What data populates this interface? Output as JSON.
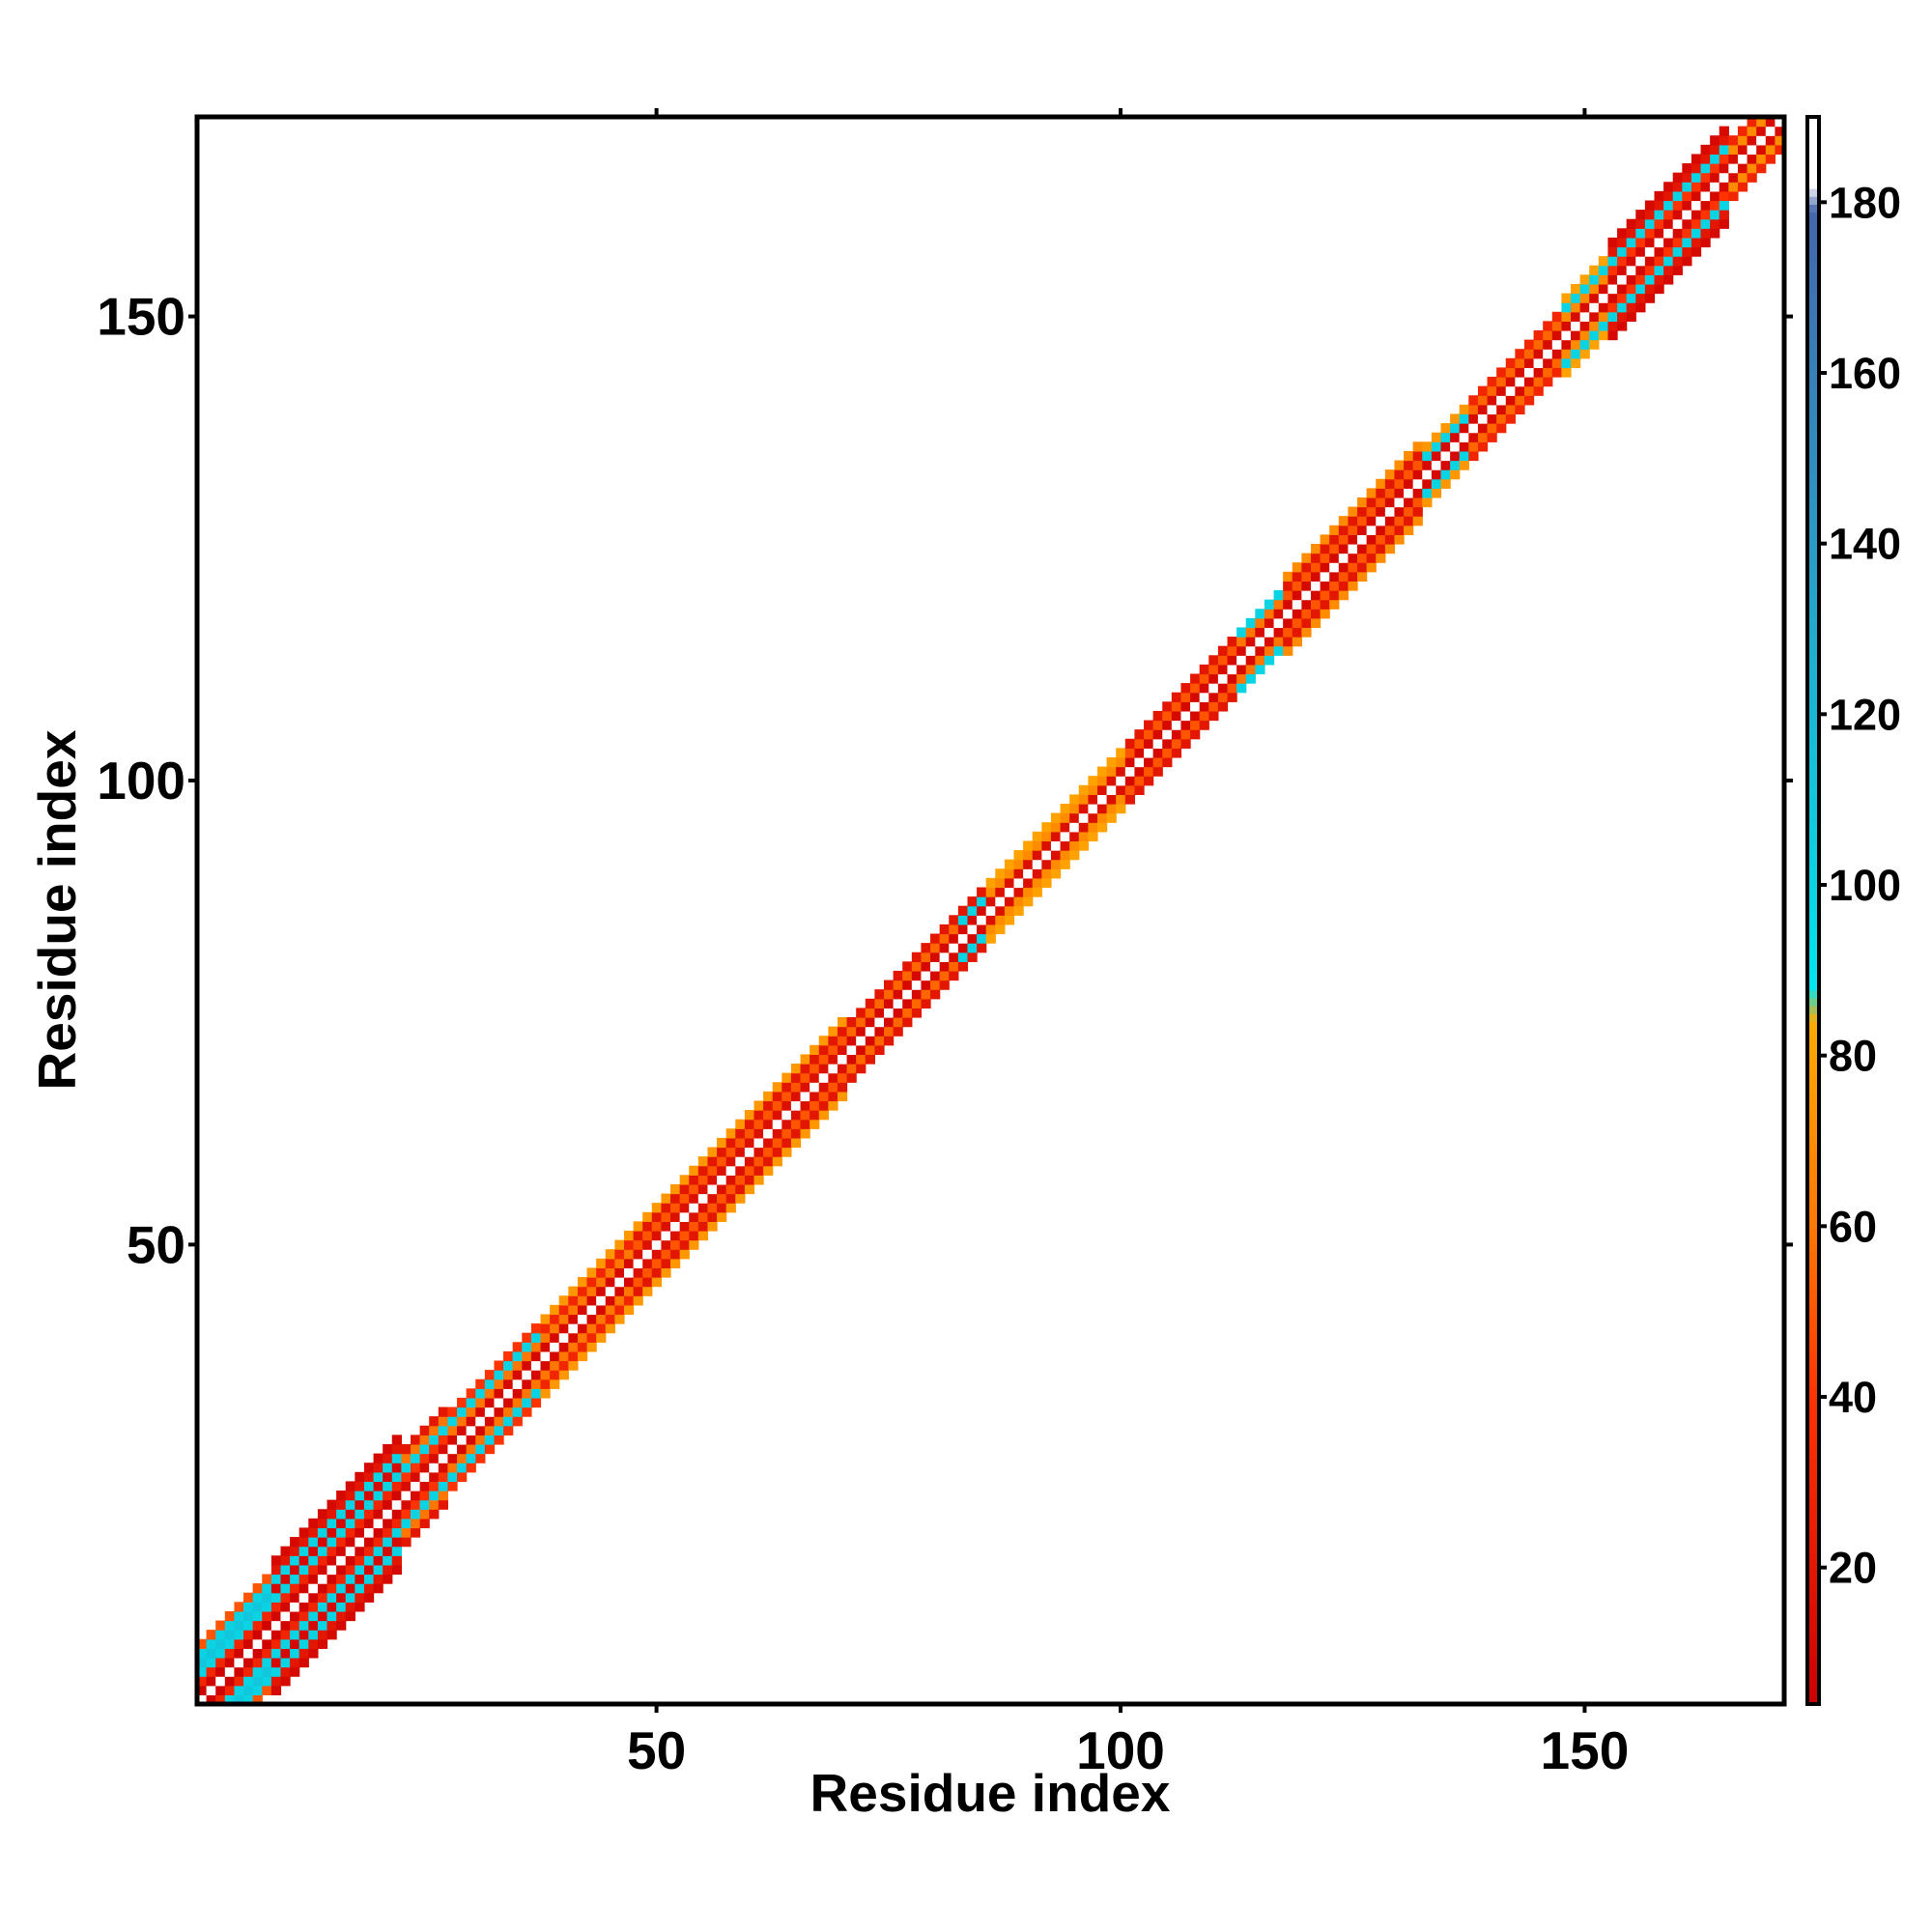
{
  "chart_data": {
    "type": "heatmap",
    "title": "",
    "xlabel": "Residue index",
    "ylabel": "Residue index",
    "xlim": [
      1,
      171
    ],
    "ylim": [
      1,
      171
    ],
    "x_ticks": [
      50,
      100,
      150
    ],
    "y_ticks": [
      50,
      100,
      150
    ],
    "grid": false,
    "legend": "colorbar-right",
    "colorbar": {
      "range": [
        4,
        190
      ],
      "ticks": [
        20,
        40,
        60,
        80,
        100,
        120,
        140,
        160,
        180
      ],
      "stops": [
        {
          "value": 4,
          "color": "#cc0000"
        },
        {
          "value": 40,
          "color": "#ff3300"
        },
        {
          "value": 60,
          "color": "#ff7700"
        },
        {
          "value": 84,
          "color": "#ffaa00"
        },
        {
          "value": 88,
          "color": "#00e5ee"
        },
        {
          "value": 130,
          "color": "#22aacc"
        },
        {
          "value": 179,
          "color": "#4466aa"
        },
        {
          "value": 182,
          "color": "#ffffff"
        },
        {
          "value": 190,
          "color": "#ffffff"
        }
      ]
    },
    "diagonal_pattern": {
      "description_values": "value at |i-j|: 0→190, 1→value from band table",
      "bands": [
        {
          "start": 1,
          "end": 8,
          "offsets": [
            6,
            30,
            100,
            110,
            100,
            50
          ]
        },
        {
          "start": 9,
          "end": 22,
          "offsets": [
            8,
            30,
            100,
            10,
            100,
            20,
            10
          ]
        },
        {
          "start": 23,
          "end": 27,
          "offsets": [
            12,
            40,
            100,
            60,
            20
          ]
        },
        {
          "start": 28,
          "end": 37,
          "offsets": [
            10,
            60,
            100,
            40
          ]
        },
        {
          "start": 38,
          "end": 47,
          "offsets": [
            10,
            60,
            30,
            75
          ]
        },
        {
          "start": 48,
          "end": 70,
          "offsets": [
            15,
            50,
            20,
            75
          ]
        },
        {
          "start": 71,
          "end": 82,
          "offsets": [
            10,
            55,
            20
          ]
        },
        {
          "start": 83,
          "end": 85,
          "offsets": [
            10,
            100,
            20
          ]
        },
        {
          "start": 86,
          "end": 100,
          "offsets": [
            15,
            70,
            80
          ]
        },
        {
          "start": 101,
          "end": 112,
          "offsets": [
            10,
            50,
            20
          ]
        },
        {
          "start": 113,
          "end": 117,
          "offsets": [
            12,
            60,
            100
          ]
        },
        {
          "start": 118,
          "end": 132,
          "offsets": [
            10,
            50,
            20,
            70
          ]
        },
        {
          "start": 133,
          "end": 137,
          "offsets": [
            10,
            100,
            75
          ]
        },
        {
          "start": 138,
          "end": 147,
          "offsets": [
            12,
            55,
            30
          ]
        },
        {
          "start": 148,
          "end": 152,
          "offsets": [
            12,
            70,
            100,
            80
          ]
        },
        {
          "start": 153,
          "end": 165,
          "offsets": [
            10,
            40,
            100,
            20,
            10
          ]
        },
        {
          "start": 166,
          "end": 171,
          "offsets": [
            12,
            70,
            30
          ]
        }
      ],
      "diagonal_value": 190
    }
  }
}
